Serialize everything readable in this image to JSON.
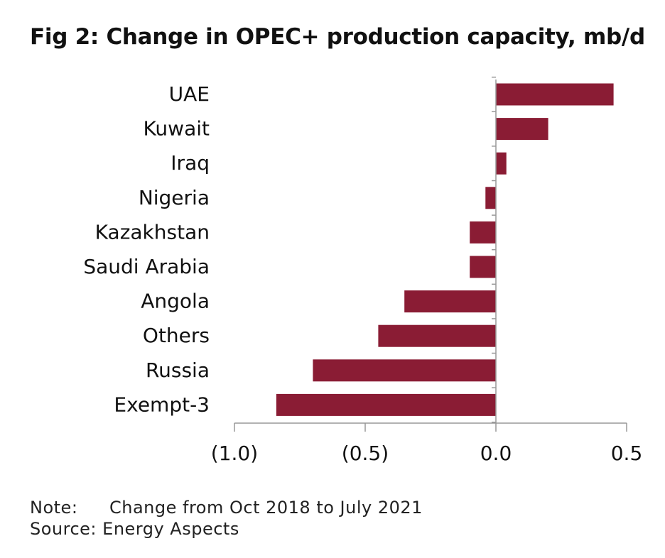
{
  "title": "Fig 2: Change in OPEC+ production capacity, mb/d",
  "notes": {
    "note_label": "Note:",
    "note_text": "Change from Oct 2018 to July 2021",
    "source_label": "Source:",
    "source_text": "Energy Aspects"
  },
  "colors": {
    "bar": "#8a1c34",
    "axis": "#999999",
    "text": "#111111"
  },
  "chart_data": {
    "type": "bar",
    "orientation": "horizontal",
    "categories": [
      "UAE",
      "Kuwait",
      "Iraq",
      "Nigeria",
      "Kazakhstan",
      "Saudi Arabia",
      "Angola",
      "Others",
      "Russia",
      "Exempt-3"
    ],
    "values": [
      0.45,
      0.2,
      0.04,
      -0.04,
      -0.1,
      -0.1,
      -0.35,
      -0.45,
      -0.7,
      -0.84
    ],
    "xlim": [
      -1.0,
      0.5
    ],
    "xticks": [
      -1.0,
      -0.5,
      0.0,
      0.5
    ],
    "xtick_labels": [
      "(1.0)",
      "(0.5)",
      "0.0",
      "0.5"
    ],
    "grid": false,
    "legend": "none"
  }
}
